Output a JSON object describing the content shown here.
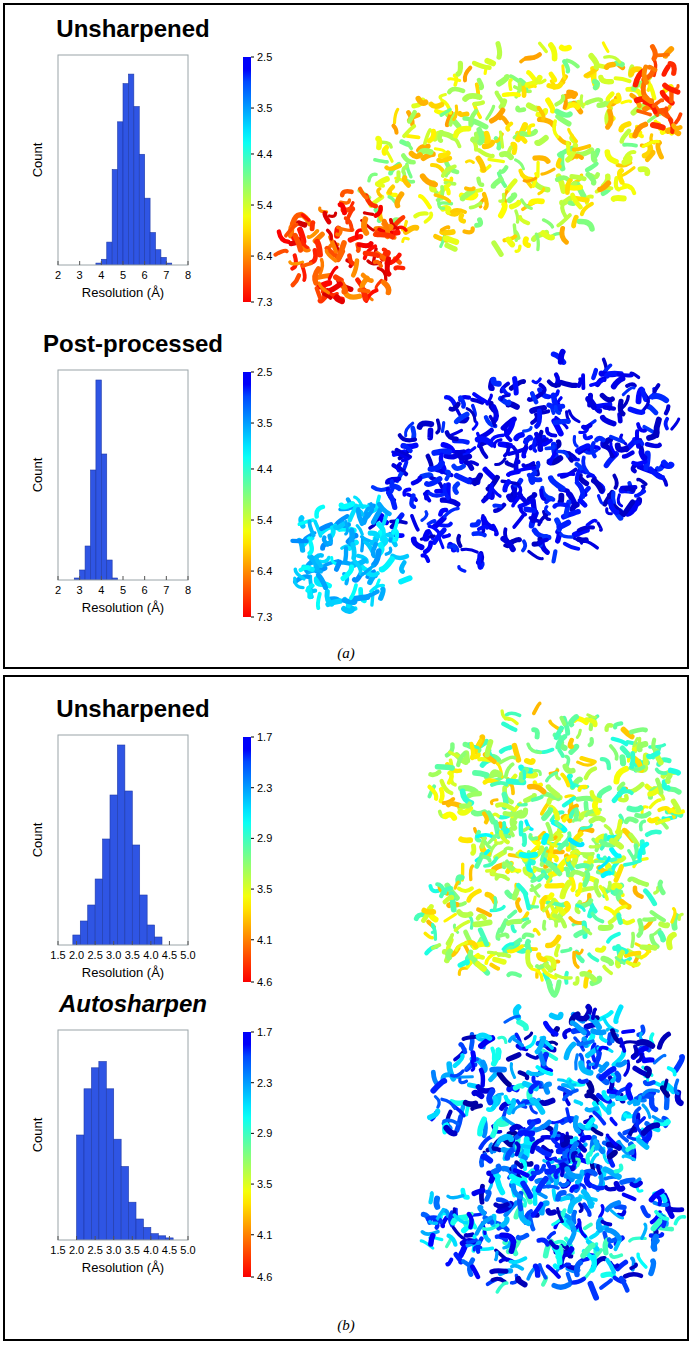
{
  "chart_data": [
    {
      "type": "histogram",
      "title": "Unsharpened",
      "x_label": "Resolution (Å)",
      "y_label": "Count",
      "bins": [
        3.75,
        4.0,
        4.25,
        4.5,
        4.75,
        5.0,
        5.25,
        5.5,
        5.75,
        6.0,
        6.25,
        6.5,
        6.75,
        7.0,
        7.25,
        7.5
      ],
      "values": [
        1,
        3,
        12,
        50,
        75,
        95,
        100,
        83,
        58,
        35,
        17,
        8,
        4,
        1,
        0
      ],
      "color": "#2f55e4",
      "xlim": [
        2,
        8
      ],
      "xticks": [
        2,
        3,
        4,
        5,
        6,
        7,
        8
      ],
      "ylim": [
        0,
        110
      ],
      "grid": false,
      "tick_labels": "x",
      "colorbar": {
        "range": [
          2.5,
          7.3
        ],
        "ticks": [
          2.5,
          3.5,
          4.4,
          5.4,
          6.4,
          7.3
        ]
      }
    },
    {
      "type": "histogram",
      "title": "Post-processed",
      "x_label": "Resolution (Å)",
      "y_label": "Count",
      "bins": [
        2.75,
        3.0,
        3.25,
        3.5,
        3.75,
        4.0,
        4.25,
        4.5,
        4.75
      ],
      "values": [
        1,
        5,
        17,
        55,
        100,
        63,
        10,
        1
      ],
      "color": "#2f55e4",
      "xlim": [
        2,
        8
      ],
      "xticks": [
        2,
        3,
        4,
        5,
        6,
        7,
        8
      ],
      "ylim": [
        0,
        105
      ],
      "grid": false,
      "tick_labels": "x",
      "colorbar": {
        "range": [
          2.5,
          7.3
        ],
        "ticks": [
          2.5,
          3.5,
          4.4,
          5.4,
          6.4,
          7.3
        ]
      },
      "annotations": [
        "(a)"
      ]
    },
    {
      "type": "histogram",
      "title": "Unsharpened",
      "x_label": "Resolution (Å)",
      "y_label": "Count",
      "bins": [
        1.9,
        2.1,
        2.3,
        2.5,
        2.7,
        2.9,
        3.1,
        3.3,
        3.5,
        3.7,
        3.9,
        4.1,
        4.3
      ],
      "values": [
        5,
        12,
        20,
        33,
        53,
        75,
        100,
        77,
        50,
        25,
        10,
        4
      ],
      "color": "#2f55e4",
      "xlim": [
        1.5,
        5
      ],
      "xticks": [
        1.5,
        {
          "value": 2,
          "label": "2.0"
        },
        2.5,
        {
          "value": 3,
          "label": "3.0"
        },
        3.5,
        {
          "value": 4,
          "label": "4.0"
        },
        4.5,
        {
          "value": 5,
          "label": "5.0"
        }
      ],
      "ylim": [
        0,
        105
      ],
      "grid": false,
      "tick_labels": "x",
      "colorbar": {
        "range": [
          1.7,
          4.6
        ],
        "ticks": [
          1.7,
          2.3,
          2.9,
          3.5,
          4.1,
          4.6
        ]
      }
    },
    {
      "type": "histogram",
      "title": "Autosharpen",
      "x_label": "Resolution (Å)",
      "y_label": "Count",
      "bins": [
        2.0,
        2.2,
        2.4,
        2.6,
        2.8,
        3.0,
        3.2,
        3.4,
        3.6,
        3.8,
        4.0,
        4.2,
        4.4,
        4.6
      ],
      "values": [
        50,
        72,
        82,
        85,
        72,
        48,
        35,
        18,
        10,
        6,
        3,
        2,
        1
      ],
      "color": "#2f55e4",
      "xlim": [
        1.5,
        5
      ],
      "xticks": [
        1.5,
        {
          "value": 2,
          "label": "2.0"
        },
        2.5,
        {
          "value": 3,
          "label": "3.0"
        },
        3.5,
        {
          "value": 4,
          "label": "4.0"
        },
        4.5,
        {
          "value": 5,
          "label": "5.0"
        }
      ],
      "ylim": [
        0,
        100
      ],
      "grid": false,
      "tick_labels": "x",
      "colorbar": {
        "range": [
          1.7,
          4.6
        ],
        "ticks": [
          1.7,
          2.3,
          2.9,
          3.5,
          4.1,
          4.6
        ]
      },
      "annotations": [
        "(b)"
      ]
    }
  ]
}
